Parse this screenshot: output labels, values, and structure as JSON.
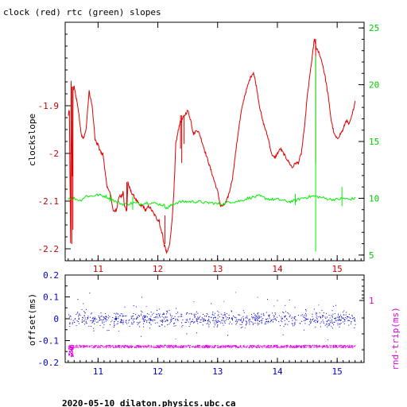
{
  "chart_data": [
    {
      "type": "line",
      "title": "clock (red) rtc (green) slopes",
      "ylabel": "clockslope",
      "xlim": [
        10.45,
        15.45
      ],
      "ylim": [
        -2.225,
        -1.725
      ],
      "y2lim": [
        4.5,
        25.5
      ],
      "x_ticks": [
        "11",
        "12",
        "13",
        "14",
        "15"
      ],
      "y_ticks": [
        "-1.9",
        "-2",
        "-2.1",
        "-2.2"
      ],
      "y2_ticks": [
        "25",
        "20",
        "15",
        "10",
        "5"
      ],
      "series": [
        {
          "color": "#dd0000",
          "axis": "left",
          "x": [
            10.5,
            10.52,
            10.54,
            10.55,
            10.56,
            10.57,
            10.58,
            10.6,
            10.63,
            10.66,
            10.7,
            10.72,
            10.75,
            10.8,
            10.85,
            10.9,
            10.95,
            10.98,
            11.0,
            11.02,
            11.05,
            11.08,
            11.1,
            11.15,
            11.2,
            11.25,
            11.3,
            11.32,
            11.35,
            11.4,
            11.42,
            11.44,
            11.48,
            11.5,
            11.52,
            11.55,
            11.6,
            11.65,
            11.7,
            11.75,
            11.8,
            11.85,
            11.9,
            11.95,
            12.0,
            12.02,
            12.05,
            12.08,
            12.1,
            12.13,
            12.15,
            12.2,
            12.25,
            12.28,
            12.3,
            12.33,
            12.36,
            12.4,
            12.45,
            12.5,
            12.55,
            12.58,
            12.6,
            12.65,
            12.7,
            12.75,
            12.8,
            12.85,
            12.9,
            12.95,
            13.0,
            13.05,
            13.1,
            13.15,
            13.2,
            13.25,
            13.3,
            13.35,
            13.4,
            13.45,
            13.5,
            13.55,
            13.6,
            13.65,
            13.7,
            13.75,
            13.8,
            13.85,
            13.9,
            13.95,
            14.0,
            14.05,
            14.1,
            14.15,
            14.2,
            14.25,
            14.3,
            14.35,
            14.4,
            14.45,
            14.5,
            14.55,
            14.6,
            14.62,
            14.65,
            14.7,
            14.75,
            14.8,
            14.85,
            14.9,
            14.95,
            15.0,
            15.05,
            15.1,
            15.15,
            15.2,
            15.25,
            15.3
          ],
          "y": [
            -1.92,
            -1.91,
            -2.19,
            -1.85,
            -1.99,
            -2.05,
            -1.87,
            -1.86,
            -1.88,
            -1.9,
            -1.94,
            -1.96,
            -1.97,
            -1.95,
            -1.87,
            -1.9,
            -1.97,
            -1.98,
            -1.98,
            -1.99,
            -2.0,
            -2.0,
            -2.02,
            -2.07,
            -2.08,
            -2.12,
            -2.12,
            -2.11,
            -2.09,
            -2.09,
            -2.08,
            -2.11,
            -2.12,
            -2.06,
            -2.07,
            -2.08,
            -2.09,
            -2.1,
            -2.11,
            -2.11,
            -2.12,
            -2.11,
            -2.12,
            -2.13,
            -2.14,
            -2.14,
            -2.16,
            -2.17,
            -2.19,
            -2.2,
            -2.21,
            -2.19,
            -2.12,
            -2.05,
            -1.98,
            -1.96,
            -1.94,
            -1.93,
            -1.92,
            -1.91,
            -1.93,
            -1.95,
            -1.96,
            -1.95,
            -1.96,
            -1.98,
            -2.0,
            -2.02,
            -2.04,
            -2.06,
            -2.08,
            -2.11,
            -2.11,
            -2.1,
            -2.08,
            -2.05,
            -2.0,
            -1.95,
            -1.91,
            -1.88,
            -1.86,
            -1.84,
            -1.83,
            -1.86,
            -1.9,
            -1.93,
            -1.95,
            -1.97,
            -2.0,
            -2.01,
            -2.0,
            -1.99,
            -2.0,
            -2.01,
            -2.02,
            -2.03,
            -2.02,
            -2.02,
            -2.0,
            -1.95,
            -1.88,
            -1.83,
            -1.78,
            -1.76,
            -1.78,
            -1.79,
            -1.81,
            -1.84,
            -1.88,
            -1.93,
            -1.96,
            -1.97,
            -1.96,
            -1.95,
            -1.93,
            -1.94,
            -1.92,
            -1.89
          ]
        },
        {
          "color": "#00ee00",
          "axis": "right",
          "x": [
            10.5,
            10.6,
            10.7,
            10.8,
            10.9,
            11.0,
            11.1,
            11.2,
            11.3,
            11.4,
            11.5,
            11.6,
            11.7,
            11.8,
            11.9,
            12.0,
            12.1,
            12.15,
            12.2,
            12.3,
            12.4,
            12.5,
            12.6,
            12.7,
            12.8,
            12.9,
            13.0,
            13.1,
            13.2,
            13.3,
            13.4,
            13.5,
            13.6,
            13.7,
            13.8,
            13.9,
            14.0,
            14.1,
            14.2,
            14.3,
            14.4,
            14.5,
            14.6,
            14.7,
            14.8,
            14.9,
            15.0,
            15.1,
            15.2,
            15.3
          ],
          "y": [
            10.0,
            10.0,
            9.8,
            10.2,
            10.2,
            10.3,
            10.2,
            10.0,
            9.7,
            9.5,
            9.5,
            9.6,
            9.5,
            9.6,
            9.6,
            9.5,
            9.4,
            9.1,
            9.3,
            9.6,
            9.7,
            9.7,
            9.7,
            9.7,
            9.6,
            9.6,
            9.5,
            9.5,
            9.7,
            9.7,
            9.8,
            10.0,
            10.1,
            10.2,
            10.0,
            9.9,
            9.9,
            9.8,
            9.7,
            9.8,
            10.0,
            10.1,
            10.2,
            10.1,
            10.0,
            9.9,
            9.9,
            10.0,
            9.9,
            10.0
          ]
        }
      ],
      "spikes": [
        {
          "x": 10.56,
          "y1": -1.86,
          "y2": -2.19
        },
        {
          "x": 10.58,
          "y1": -1.86,
          "y2": -2.16
        },
        {
          "x": 11.48,
          "y1": -2.06,
          "y2": -2.12
        },
        {
          "x": 12.12,
          "y1": -2.13,
          "y2": -2.19
        },
        {
          "x": 12.38,
          "y1": -1.92,
          "y2": -1.99
        },
        {
          "x": 12.4,
          "y1": -1.92,
          "y2": -2.02
        },
        {
          "x": 12.44,
          "y1": -1.92,
          "y2": -1.98
        },
        {
          "x": 14.64,
          "y1": -1.76,
          "y2": -2.02
        }
      ],
      "rtc_spikes": [
        {
          "x": 14.64,
          "y1": 22.5,
          "y2": 5.3
        },
        {
          "x": 15.08,
          "y1": 11.0,
          "y2": 9.3
        },
        {
          "x": 14.3,
          "y1": 10.4,
          "y2": 9.4
        },
        {
          "x": 11.58,
          "y1": 9.0,
          "y2": 10.2
        },
        {
          "x": 11.2,
          "y1": 10.4,
          "y2": 9.7
        }
      ]
    },
    {
      "type": "scatter",
      "ylabel": "offset(ms)",
      "y2label": "rnd-trip(ms)",
      "xlim": [
        10.45,
        15.45
      ],
      "ylim": [
        -0.2,
        0.2
      ],
      "x_ticks": [
        "11",
        "12",
        "13",
        "14",
        "15"
      ],
      "y_ticks": [
        "0.2",
        "0.1",
        "0",
        "-0.1",
        "-0.2"
      ],
      "y2_ticks": [
        "1"
      ],
      "series": [
        {
          "color": "#0000cc",
          "axis": "left",
          "center": 0.0,
          "spread": 0.025
        },
        {
          "color": "#dd00dd",
          "axis": "right",
          "center": -0.125,
          "spread": 0.006
        }
      ]
    }
  ],
  "footer": "2020-05-10  dilaton.physics.ubc.ca"
}
